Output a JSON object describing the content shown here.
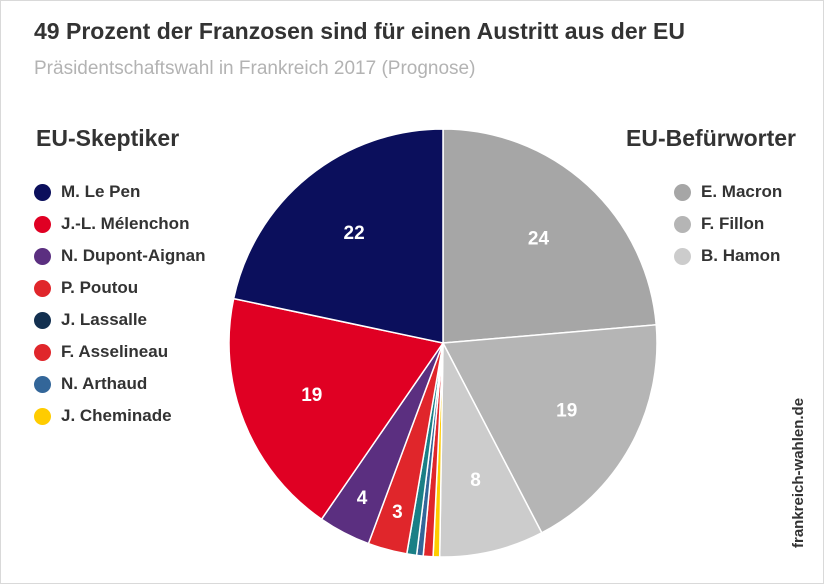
{
  "chart_data": {
    "type": "pie",
    "title": "49 Prozent der Franzosen sind für einen Austritt aus der EU",
    "subtitle": "Präsidentschaftswahl in Frankreich 2017 (Prognose)",
    "unit": "Prozent",
    "groups": [
      {
        "title": "EU-Skeptiker",
        "legend_position": "left",
        "items": [
          {
            "name": "M. Le Pen",
            "value": 22,
            "color": "#0b0f5c",
            "label": "22"
          },
          {
            "name": "J.-L. Mélenchon",
            "value": 19,
            "color": "#e00023",
            "label": "19"
          },
          {
            "name": "N. Dupont-Aignan",
            "value": 4,
            "color": "#5b2f80",
            "label": "4"
          },
          {
            "name": "P. Poutou",
            "value": 3,
            "color": "#e0262b",
            "label": "3"
          },
          {
            "name": "J. Lassalle",
            "value": 0.75,
            "color": "#133050",
            "label": ""
          },
          {
            "name": "F. Asselineau",
            "value": 0.75,
            "color": "#e0262b",
            "label": ""
          },
          {
            "name": "N. Arthaud",
            "value": 0.5,
            "color": "#336699",
            "label": ""
          },
          {
            "name": "J. Cheminade",
            "value": 0.5,
            "color": "#ffcc00",
            "label": ""
          }
        ]
      },
      {
        "title": "EU-Befürworter",
        "legend_position": "right",
        "items": [
          {
            "name": "E. Macron",
            "value": 24,
            "color": "#a6a6a6",
            "label": "24"
          },
          {
            "name": "F. Fillon",
            "value": 19,
            "color": "#b5b5b5",
            "label": "19"
          },
          {
            "name": "B. Hamon",
            "value": 8,
            "color": "#cccccc",
            "label": "8"
          }
        ]
      }
    ],
    "pie_order": [
      "E. Macron",
      "F. Fillon",
      "B. Hamon",
      "J. Cheminade",
      "F. Asselineau",
      "N. Arthaud",
      "J. Lassalle",
      "P. Poutou",
      "N. Dupont-Aignan",
      "J.-L. Mélenchon",
      "M. Le Pen"
    ],
    "extra_slice_colors": {
      "J. Lassalle": "#1a7f86"
    },
    "start_angle": "12 o'clock",
    "direction": "clockwise"
  },
  "source": "frankreich-wahlen.de"
}
